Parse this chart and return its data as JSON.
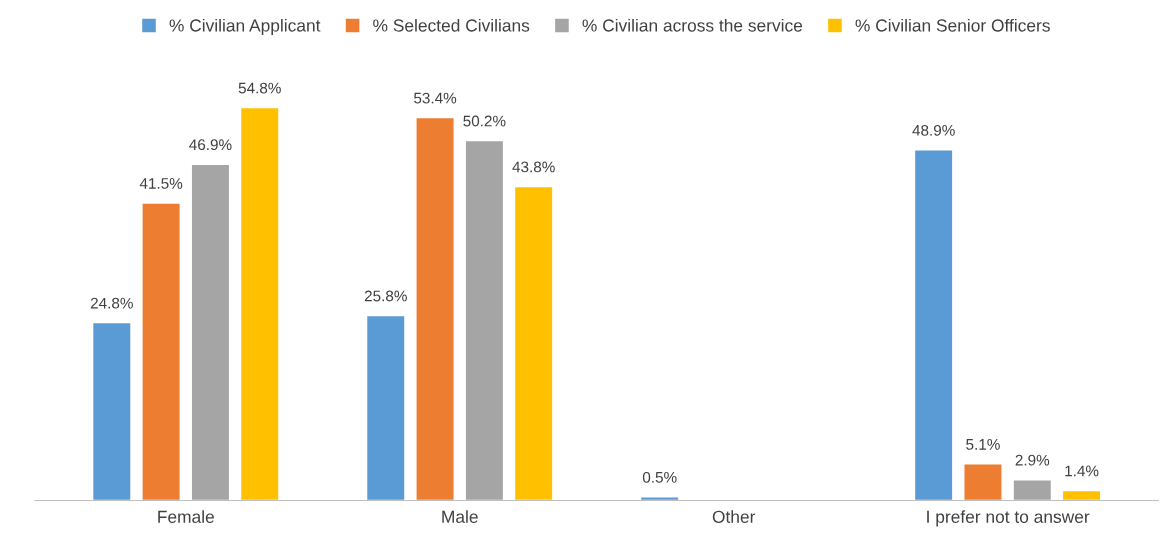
{
  "chart_data": {
    "type": "bar",
    "categories": [
      "Female",
      "Male",
      "Other",
      "I prefer not to answer"
    ],
    "series": [
      {
        "name": "% Civilian Applicant",
        "color": "#5b9bd5",
        "values": [
          24.8,
          25.8,
          0.5,
          48.9
        ],
        "value_labels": [
          "24.8%",
          "25.8%",
          "0.5%",
          "48.9%"
        ]
      },
      {
        "name": "% Selected Civilians",
        "color": "#ed7d31",
        "values": [
          41.5,
          53.4,
          null,
          5.1
        ],
        "value_labels": [
          "41.5%",
          "53.4%",
          null,
          "5.1%"
        ]
      },
      {
        "name": "% Civilian across the service",
        "color": "#a5a5a5",
        "values": [
          46.9,
          50.2,
          null,
          2.9
        ],
        "value_labels": [
          "46.9%",
          "50.2%",
          null,
          "2.9%"
        ]
      },
      {
        "name": "% Civilian Senior Officers",
        "color": "#ffc000",
        "values": [
          54.8,
          43.8,
          null,
          1.4
        ],
        "value_labels": [
          "54.8%",
          "43.8%",
          null,
          "1.4%"
        ]
      }
    ],
    "legend": "top",
    "grid": false,
    "tick_labels": "x"
  }
}
